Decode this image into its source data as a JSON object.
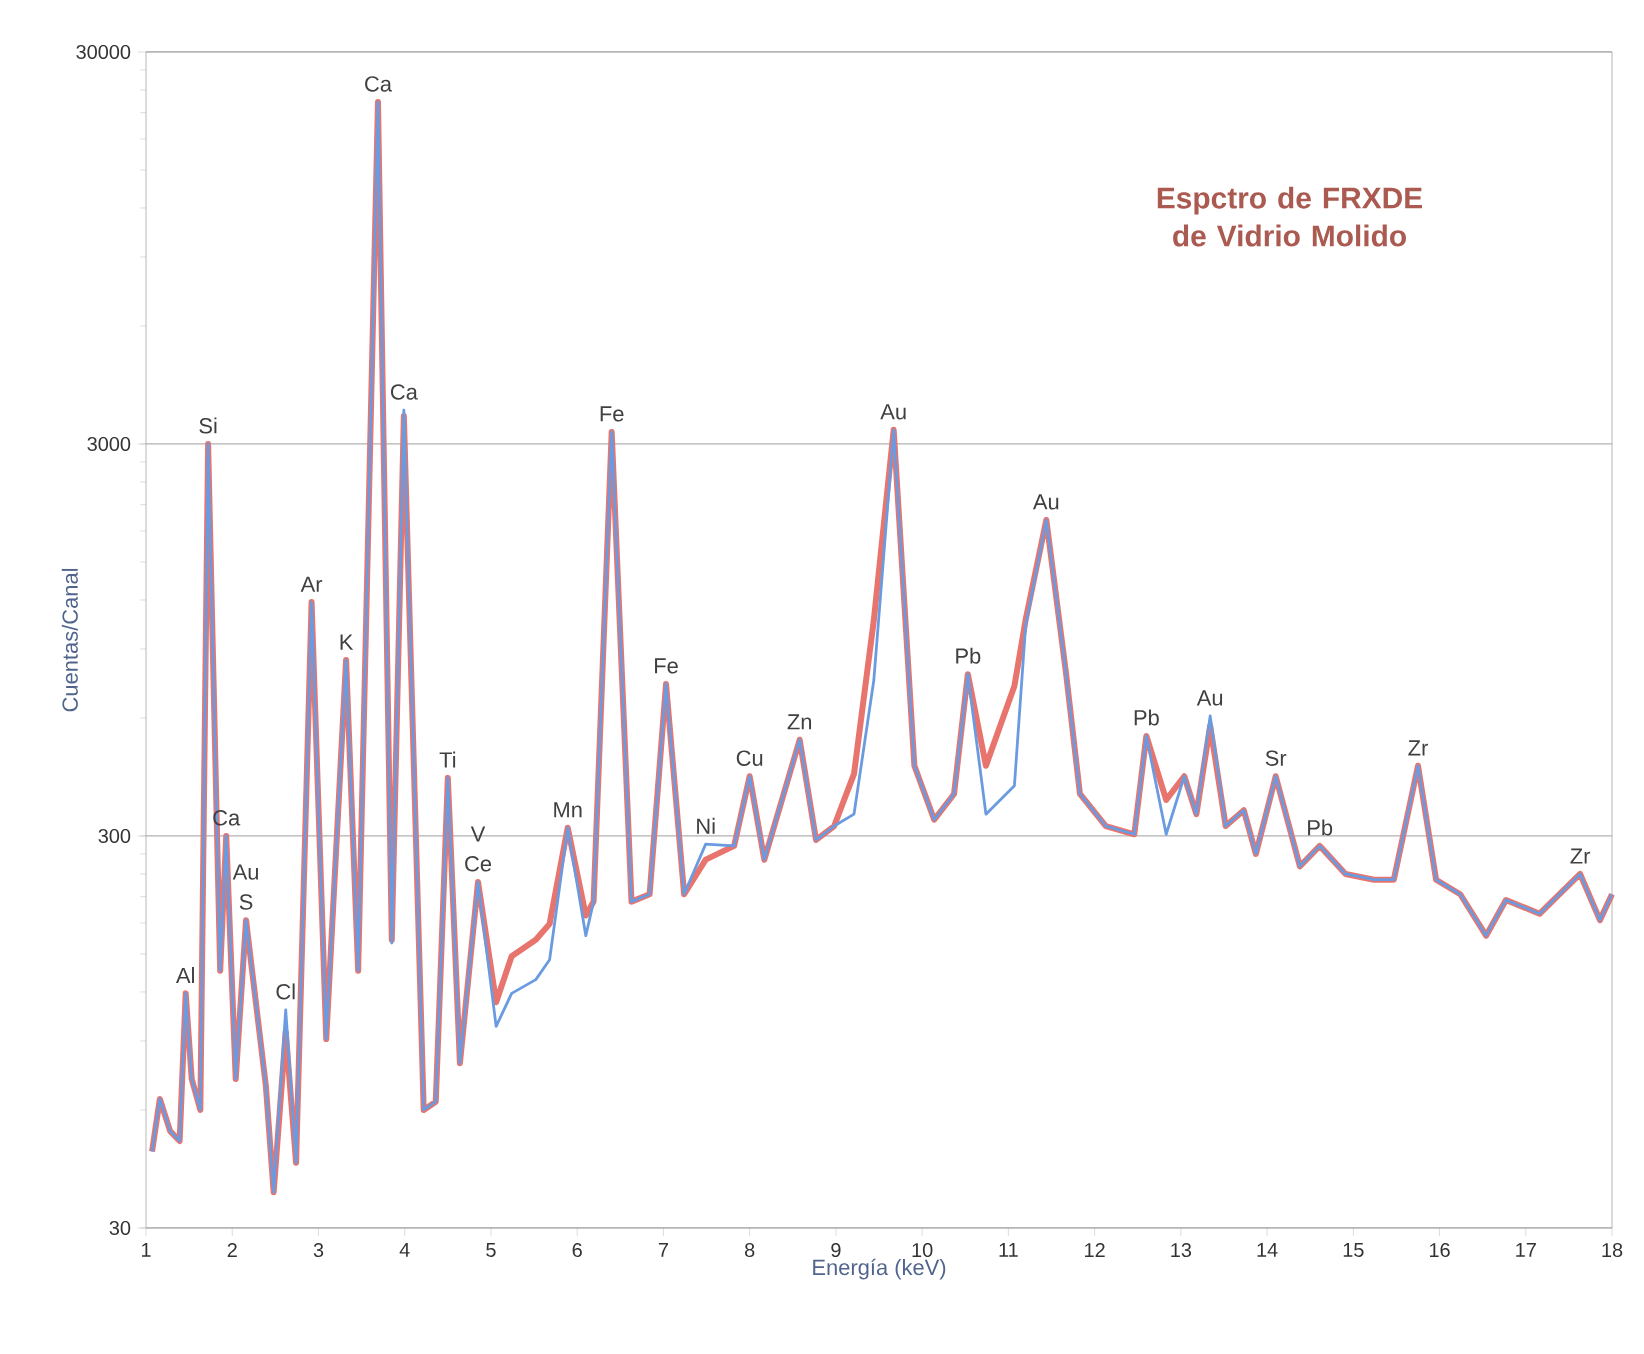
{
  "chart_data": {
    "type": "line",
    "title": "Espctro de FRXDE de Vidrio Molido",
    "xlabel": "Energía (keV)",
    "ylabel": "Cuentas/Canal",
    "xlim": [
      1,
      18
    ],
    "xticks": [
      1,
      2,
      3,
      4,
      5,
      6,
      7,
      8,
      9,
      10,
      11,
      12,
      13,
      14,
      15,
      16,
      17,
      18
    ],
    "ylim": [
      30,
      30000
    ],
    "yticks": [
      30,
      300,
      3000,
      30000
    ],
    "log": "y",
    "grid": "y",
    "marker": "none",
    "line_style": "solid",
    "series": [
      {
        "color": "#6a9be0",
        "x": [
          1.07,
          1.16,
          1.28,
          1.39,
          1.46,
          1.53,
          1.63,
          1.72,
          1.86,
          1.93,
          2.04,
          2.16,
          2.39,
          2.48,
          2.62,
          2.74,
          2.92,
          3.09,
          3.32,
          3.46,
          3.69,
          3.85,
          3.99,
          4.22,
          4.36,
          4.5,
          4.64,
          4.85,
          5.06,
          5.24,
          5.52,
          5.68,
          5.89,
          6.1,
          6.19,
          6.4,
          6.63,
          6.84,
          7.03,
          7.24,
          7.49,
          7.82,
          8.0,
          8.17,
          8.58,
          8.77,
          8.98,
          9.21,
          9.44,
          9.67,
          9.91,
          10.14,
          10.37,
          10.53,
          10.74,
          11.07,
          11.2,
          11.44,
          11.67,
          11.83,
          12.13,
          12.46,
          12.6,
          12.83,
          13.04,
          13.18,
          13.34,
          13.52,
          13.73,
          13.87,
          14.1,
          14.38,
          14.61,
          14.91,
          15.24,
          15.47,
          15.75,
          15.96,
          16.24,
          16.54,
          16.77,
          17.16,
          17.63,
          17.86,
          18.0
        ],
        "values": [
          47,
          64,
          53,
          50,
          119,
          72,
          60,
          3000,
          136,
          300,
          72,
          183,
          69,
          37,
          108,
          44,
          1185,
          91,
          843,
          136,
          22350,
          160,
          3660,
          60,
          63,
          422,
          79,
          229,
          98,
          119,
          129,
          145,
          315,
          167,
          204,
          3220,
          204,
          213,
          733,
          213,
          286,
          283,
          426,
          261,
          528,
          293,
          318,
          341,
          750,
          3260,
          453,
          330,
          384,
          776,
          341,
          403,
          1030,
          1920,
          776,
          384,
          318,
          303,
          540,
          303,
          426,
          341,
          607,
          318,
          349,
          270,
          426,
          251,
          283,
          240,
          232,
          232,
          453,
          232,
          213,
          167,
          206,
          190,
          240,
          183,
          213
        ]
      },
      {
        "color": "#e8746e",
        "x": [
          1.07,
          1.16,
          1.28,
          1.39,
          1.46,
          1.53,
          1.63,
          1.72,
          1.86,
          1.93,
          2.04,
          2.16,
          2.39,
          2.48,
          2.62,
          2.74,
          2.92,
          3.09,
          3.32,
          3.46,
          3.69,
          3.85,
          3.99,
          4.22,
          4.36,
          4.5,
          4.64,
          4.85,
          5.06,
          5.24,
          5.52,
          5.68,
          5.89,
          6.1,
          6.19,
          6.4,
          6.63,
          6.84,
          7.03,
          7.24,
          7.49,
          7.82,
          8.0,
          8.17,
          8.58,
          8.77,
          8.98,
          9.21,
          9.44,
          9.67,
          9.91,
          10.14,
          10.37,
          10.53,
          10.74,
          11.07,
          11.2,
          11.44,
          11.67,
          11.83,
          12.13,
          12.46,
          12.6,
          12.83,
          13.04,
          13.18,
          13.34,
          13.52,
          13.73,
          13.87,
          14.1,
          14.38,
          14.61,
          14.91,
          15.24,
          15.47,
          15.75,
          15.96,
          16.24,
          16.54,
          16.77,
          17.16,
          17.63,
          17.86,
          18.0
        ],
        "values": [
          47,
          64,
          53,
          50,
          119,
          72,
          60,
          3000,
          136,
          300,
          72,
          183,
          69,
          37,
          95,
          44,
          1185,
          91,
          843,
          136,
          22350,
          163,
          3535,
          60,
          63,
          422,
          79,
          229,
          113,
          148,
          163,
          179,
          315,
          188,
          204,
          3220,
          204,
          213,
          733,
          213,
          261,
          283,
          426,
          261,
          528,
          293,
          318,
          432,
          1067,
          3260,
          453,
          330,
          384,
          776,
          453,
          724,
          1067,
          1920,
          776,
          384,
          318,
          303,
          540,
          371,
          426,
          341,
          573,
          318,
          349,
          270,
          426,
          251,
          283,
          240,
          232,
          232,
          453,
          232,
          213,
          167,
          206,
          190,
          240,
          183,
          213
        ]
      }
    ],
    "annotations": [
      {
        "text": "Al",
        "x": 1.46,
        "y": 119
      },
      {
        "text": "Si",
        "x": 1.72,
        "y": 3000
      },
      {
        "text": "Ca",
        "x": 1.93,
        "y": 300
      },
      {
        "text": "Au",
        "x": 2.16,
        "y": 183
      },
      {
        "text": "S",
        "x": 2.16,
        "y": 183
      },
      {
        "text": "Cl",
        "x": 2.62,
        "y": 108
      },
      {
        "text": "Ar",
        "x": 2.92,
        "y": 1185
      },
      {
        "text": "K",
        "x": 3.32,
        "y": 843
      },
      {
        "text": "Ca",
        "x": 3.69,
        "y": 22350
      },
      {
        "text": "Ca",
        "x": 3.99,
        "y": 3660
      },
      {
        "text": "Ti",
        "x": 4.5,
        "y": 422
      },
      {
        "text": "V",
        "x": 4.85,
        "y": 229
      },
      {
        "text": "Ce",
        "x": 4.85,
        "y": 229
      },
      {
        "text": "Mn",
        "x": 5.89,
        "y": 315
      },
      {
        "text": "Fe",
        "x": 6.4,
        "y": 3220
      },
      {
        "text": "Fe",
        "x": 7.03,
        "y": 733
      },
      {
        "text": "Ni",
        "x": 7.49,
        "y": 286
      },
      {
        "text": "Cu",
        "x": 8.0,
        "y": 426
      },
      {
        "text": "Zn",
        "x": 8.58,
        "y": 528
      },
      {
        "text": "Au",
        "x": 9.67,
        "y": 3260
      },
      {
        "text": "Pb",
        "x": 10.53,
        "y": 776
      },
      {
        "text": "Au",
        "x": 11.44,
        "y": 1920
      },
      {
        "text": "Pb",
        "x": 12.6,
        "y": 540
      },
      {
        "text": "Au",
        "x": 13.34,
        "y": 607
      },
      {
        "text": "Sr",
        "x": 14.1,
        "y": 426
      },
      {
        "text": "Pb",
        "x": 14.61,
        "y": 283
      },
      {
        "text": "Zr",
        "x": 15.75,
        "y": 453
      },
      {
        "text": "Zr",
        "x": 17.63,
        "y": 240
      }
    ]
  }
}
